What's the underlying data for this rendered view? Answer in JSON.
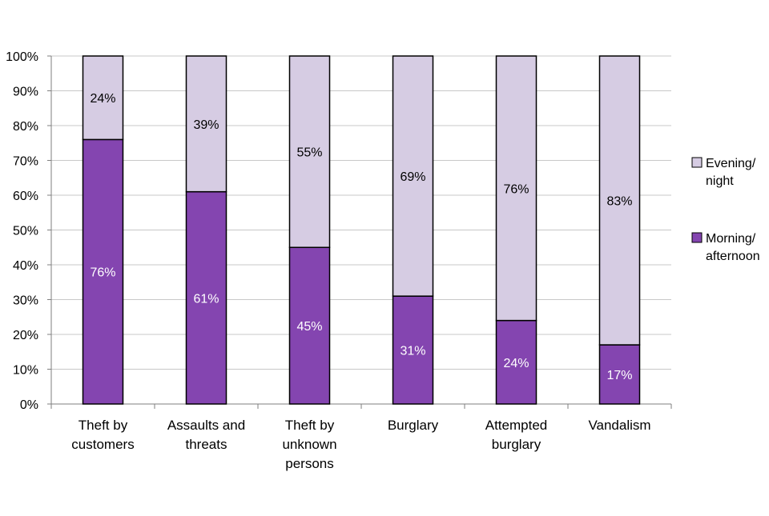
{
  "chart_data": {
    "type": "bar",
    "stacked": true,
    "title": "",
    "xlabel": "",
    "ylabel": "",
    "ylim": [
      0,
      100
    ],
    "y_tick_step": 10,
    "y_tick_suffix": "%",
    "y_tick_labels": [
      "0%",
      "10%",
      "20%",
      "30%",
      "40%",
      "50%",
      "60%",
      "70%",
      "80%",
      "90%",
      "100%"
    ],
    "categories": [
      [
        "Theft by",
        "customers"
      ],
      [
        "Assaults and",
        "threats"
      ],
      [
        "Theft by",
        "unknown",
        "persons"
      ],
      [
        "Burglary"
      ],
      [
        "Attempted",
        "burglary"
      ],
      [
        "Vandalism"
      ]
    ],
    "series": [
      {
        "name": "Morning/ afternoon",
        "legend_lines": [
          "Morning/",
          "afternoon"
        ],
        "color": "#8445B0",
        "label_color": "#ffffff",
        "values": [
          76,
          61,
          45,
          31,
          24,
          17
        ],
        "labels": [
          "76%",
          "61%",
          "45%",
          "31%",
          "24%",
          "17%"
        ]
      },
      {
        "name": "Evening/ night",
        "legend_lines": [
          "Evening/",
          "night"
        ],
        "color": "#D6CCE3",
        "label_color": "#000000",
        "values": [
          24,
          39,
          55,
          69,
          76,
          83
        ],
        "labels": [
          "24%",
          "39%",
          "55%",
          "69%",
          "76%",
          "83%"
        ]
      }
    ],
    "legend_position": "right",
    "grid": true
  }
}
